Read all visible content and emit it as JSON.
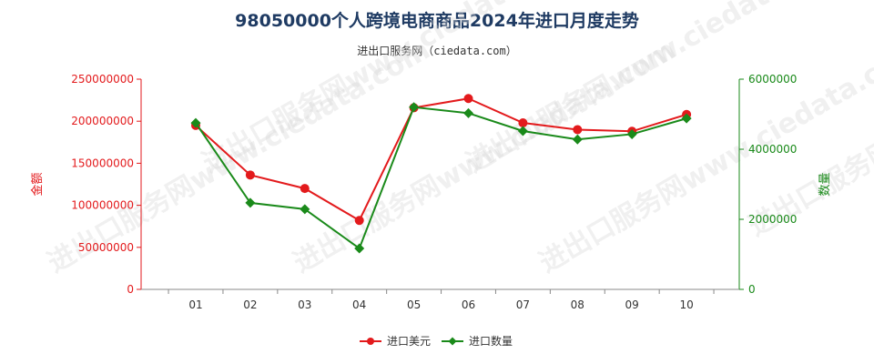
{
  "title": "98050000个人跨境电商商品2024年进口月度走势",
  "subtitle": "进出口服务网（ciedata.com）",
  "watermark": "进出口服务网www.ciedata.com",
  "colors": {
    "amount": "#e31a1c",
    "quantity": "#1a8a1a",
    "axis_left": "#e31a1c",
    "axis_right": "#1a8a1a",
    "title": "#1f3b63"
  },
  "chart_data": {
    "type": "line",
    "categories": [
      "01",
      "02",
      "03",
      "04",
      "05",
      "06",
      "07",
      "08",
      "09",
      "10"
    ],
    "ylabel_left": "金额",
    "ylabel_right": "数量",
    "ylim_left": [
      0,
      250000000
    ],
    "ylim_right": [
      0,
      6000000
    ],
    "yticks_left": [
      "0",
      "50000000",
      "100000000",
      "150000000",
      "200000000",
      "250000000"
    ],
    "yticks_right": [
      "0",
      "2000000",
      "4000000",
      "6000000"
    ],
    "legend_position": "bottom-center",
    "grid": false,
    "series": [
      {
        "name": "进口美元",
        "axis": "left",
        "marker": "circle",
        "values": [
          195000000,
          136000000,
          120000000,
          82000000,
          216000000,
          227000000,
          198000000,
          190000000,
          188000000,
          208000000
        ]
      },
      {
        "name": "进口数量",
        "axis": "right",
        "marker": "diamond",
        "values": [
          4750000,
          2470000,
          2290000,
          1170000,
          5200000,
          5030000,
          4520000,
          4280000,
          4430000,
          4880000
        ]
      }
    ]
  }
}
